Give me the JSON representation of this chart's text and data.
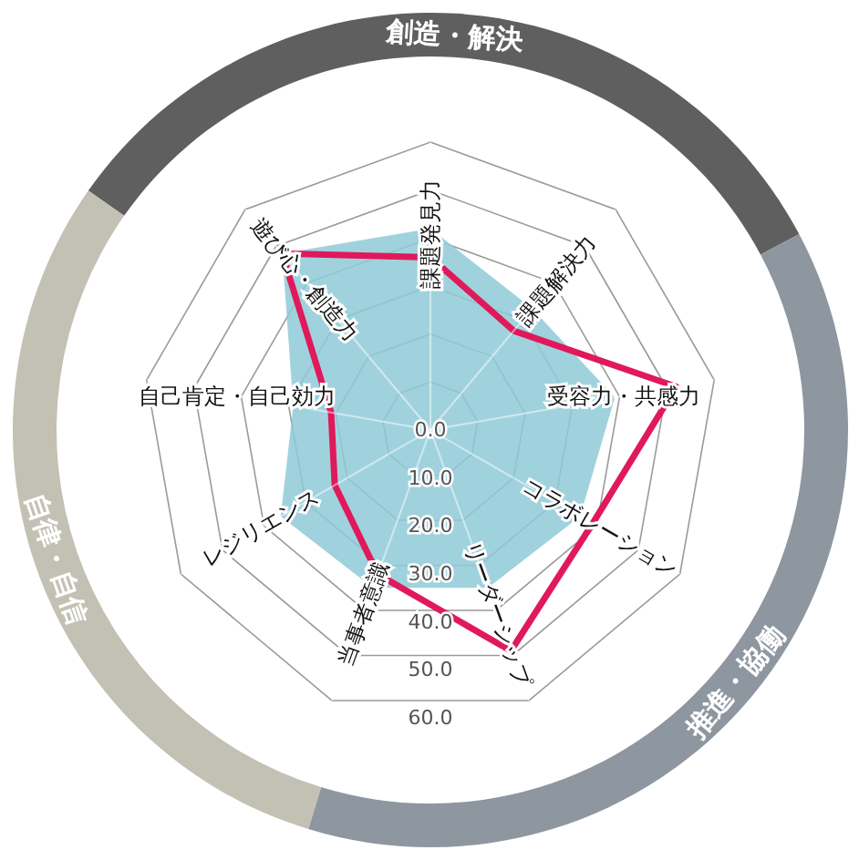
{
  "chart_data": {
    "type": "radar",
    "categories": [
      "課題発見力",
      "課題解決力",
      "受容力・共感力",
      "コラボレーション",
      "リーダーシップ",
      "当事者意識",
      "レジリエンス",
      "自己肯定・自己効力",
      "遊び心・創造力"
    ],
    "series": [
      {
        "type": "area",
        "color": "#8fcad8",
        "values": [
          42,
          33,
          39,
          36,
          35,
          35,
          36,
          29,
          48
        ]
      },
      {
        "color": "#e0195a",
        "values": [
          36,
          27,
          52,
          39,
          49,
          32,
          23,
          21,
          48
        ]
      }
    ],
    "ylim": [
      0,
      60
    ],
    "yticks": [
      {
        "value": 0,
        "label": "0.0"
      },
      {
        "value": 10,
        "label": "10.0"
      },
      {
        "value": 20,
        "label": "20.0"
      },
      {
        "value": 30,
        "label": "30.0"
      },
      {
        "value": 40,
        "label": "40.0"
      },
      {
        "value": 50,
        "label": "50.0"
      },
      {
        "value": 60,
        "label": "60.0"
      }
    ],
    "grid": true,
    "annotations": [
      "創造・解決",
      "推進・協働",
      "自律・自信"
    ]
  }
}
